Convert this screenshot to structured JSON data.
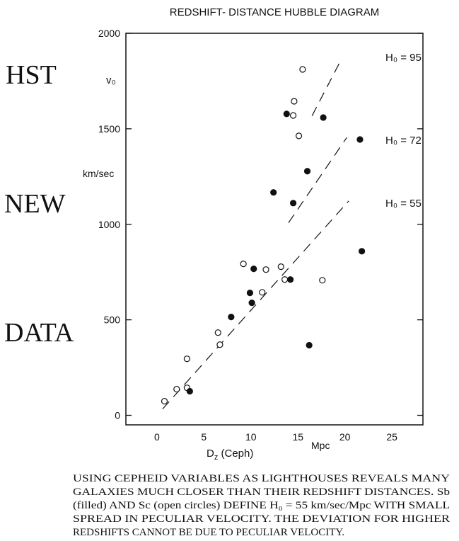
{
  "chart_data": {
    "type": "scatter",
    "title": "REDSHIFT- DISTANCE HUBBLE DIAGRAM",
    "side_labels": [
      "HST",
      "NEW",
      "DATA"
    ],
    "y_label_top": "v₀",
    "y_label": "km/sec",
    "x_label": {
      "main": "D",
      "sub": "z",
      "rest": " (Ceph)"
    },
    "x_unit": "Mpc",
    "xlim": [
      -3.3,
      28.3
    ],
    "ylim": [
      -50,
      2000
    ],
    "xticks": [
      0,
      5,
      10,
      15,
      20,
      25
    ],
    "yticks": [
      0,
      500,
      1000,
      1500,
      2000
    ],
    "series": [
      {
        "name": "Sc",
        "color": "#111",
        "filled": false,
        "x": [
          0.8,
          2.1,
          3.2,
          3.2,
          6.7,
          6.5,
          9.2,
          11.6,
          11.2,
          13.2,
          13.6,
          17.6,
          14.5,
          14.6,
          15.1,
          15.5
        ],
        "values": [
          74,
          137,
          144,
          296,
          370,
          433,
          793,
          763,
          644,
          778,
          711,
          707,
          1570,
          1644,
          1463,
          1811
        ]
      },
      {
        "name": "Sb",
        "color": "#111",
        "filled": true,
        "x": [
          3.5,
          7.9,
          9.9,
          10.1,
          10.3,
          14.2,
          16.2,
          12.4,
          14.5,
          16.0,
          13.8,
          17.7,
          21.6,
          21.8
        ],
        "values": [
          126,
          515,
          641,
          589,
          767,
          711,
          367,
          1167,
          1111,
          1278,
          1578,
          1559,
          1444,
          859
        ]
      }
    ],
    "fit_lines": [
      {
        "label": "H₀ = 95",
        "slope": 95,
        "x": [
          16.5,
          19.4
        ]
      },
      {
        "label": "H₀ = 72",
        "slope": 72,
        "x": [
          14.0,
          20.2
        ]
      },
      {
        "label": "H₀ = 55",
        "slope": 55,
        "x": [
          0.6,
          20.4
        ]
      }
    ],
    "caption": [
      "USING CEPHEID VARIABLES AS LIGHTHOUSES REVEALS MANY",
      "GALAXIES MUCH CLOSER THAN THEIR REDSHIFT DISTANCES. Sb",
      "(filled) AND Sc (open circles) DEFINE H₀ = 55 km/sec/Mpc WITH SMALL",
      "SPREAD IN PECULIAR VELOCITY. THE DEVIATION FOR HIGHER",
      "REDSHIFTS CANNOT BE DUE TO PECULIAR VELOCITY."
    ]
  }
}
